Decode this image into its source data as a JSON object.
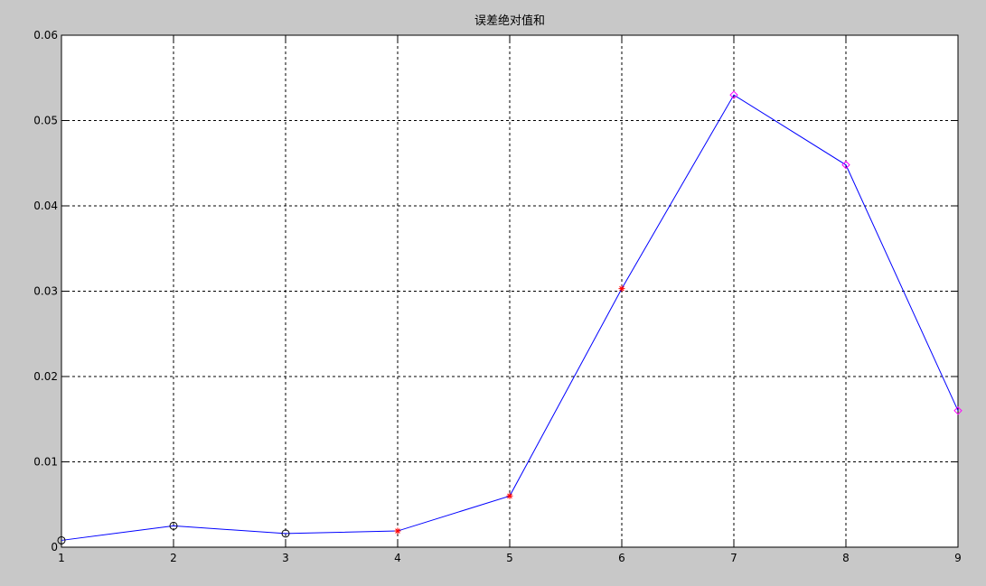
{
  "chart_data": {
    "type": "line",
    "title": "误差绝对值和",
    "xlabel": "",
    "ylabel": "",
    "xlim": [
      1,
      9
    ],
    "ylim": [
      0,
      0.06
    ],
    "grid": true,
    "x_ticks": [
      1,
      2,
      3,
      4,
      5,
      6,
      7,
      8,
      9
    ],
    "x_tick_labels": [
      "1",
      "2",
      "3",
      "4",
      "5",
      "6",
      "7",
      "8",
      "9"
    ],
    "y_ticks": [
      0,
      0.01,
      0.02,
      0.03,
      0.04,
      0.05,
      0.06
    ],
    "y_tick_labels": [
      "0",
      "0.01",
      "0.02",
      "0.03",
      "0.04",
      "0.05",
      "0.06"
    ],
    "series": [
      {
        "line_color": "#0000ff",
        "x": [
          1,
          2,
          3,
          4,
          5,
          6,
          7,
          8,
          9
        ],
        "y": [
          0.0008,
          0.0025,
          0.0016,
          0.0019,
          0.006,
          0.0303,
          0.053,
          0.0448,
          0.016
        ],
        "markers": [
          "circle",
          "circle",
          "circle",
          "star",
          "star",
          "star",
          "diamond",
          "diamond",
          "diamond"
        ],
        "marker_colors": [
          "#000000",
          "#000000",
          "#000000",
          "#ff0000",
          "#ff0000",
          "#ff0000",
          "#ff00ff",
          "#ff00ff",
          "#ff00ff"
        ]
      }
    ]
  }
}
